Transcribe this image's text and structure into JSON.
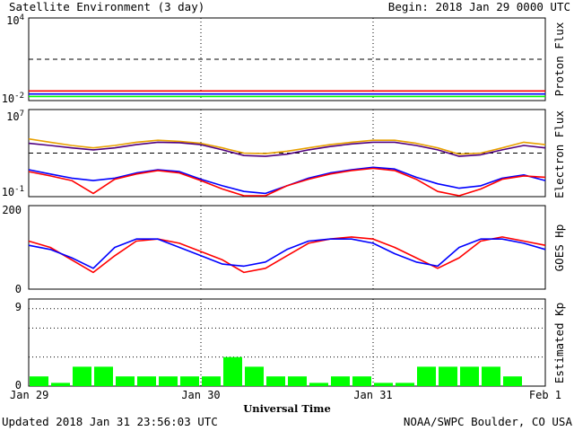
{
  "header": {
    "title": "Satellite Environment (3 day)",
    "begin": "Begin:  2018 Jan 29 0000 UTC"
  },
  "footer": {
    "updated": "Updated 2018 Jan 31 23:56:03 UTC",
    "source": "NOAA/SWPC Boulder, CO USA"
  },
  "x_axis": {
    "label": "Universal Time",
    "ticks": [
      "Jan 29",
      "Jan 30",
      "Jan 31",
      "Feb 1"
    ],
    "range_hours": [
      0,
      72
    ]
  },
  "colors": {
    "red": "#ff0000",
    "blue": "#0000ff",
    "green": "#00ff00",
    "orange": "#e8a000",
    "purple": "#500080",
    "kp_bar": "#00ff00"
  },
  "chart_data": [
    {
      "type": "line",
      "panel": "proton",
      "ylabel": "Proton Flux",
      "yscale": "log",
      "ylim": [
        0.01,
        10000
      ],
      "ytick_labels": {
        "top": {
          "base": "10",
          "exp": "4"
        },
        "bottom": {
          "base": "10",
          "exp": "-2"
        }
      },
      "threshold": 10,
      "x": [
        0,
        6,
        12,
        18,
        24,
        30,
        36,
        42,
        48,
        54,
        60,
        66,
        72
      ],
      "series": [
        {
          "color": "red",
          "values": [
            0.05,
            0.05,
            0.05,
            0.05,
            0.05,
            0.05,
            0.05,
            0.05,
            0.05,
            0.05,
            0.05,
            0.05,
            0.05
          ]
        },
        {
          "color": "blue",
          "values": [
            0.03,
            0.03,
            0.03,
            0.03,
            0.03,
            0.03,
            0.03,
            0.03,
            0.03,
            0.03,
            0.03,
            0.03,
            0.03
          ]
        },
        {
          "color": "green",
          "values": [
            0.02,
            0.02,
            0.02,
            0.02,
            0.02,
            0.02,
            0.02,
            0.02,
            0.02,
            0.02,
            0.02,
            0.02,
            0.02
          ]
        }
      ]
    },
    {
      "type": "line",
      "panel": "electron",
      "ylabel": "Electron Flux",
      "yscale": "log",
      "ylim": [
        0.1,
        10000000
      ],
      "ytick_labels": {
        "top": {
          "base": "10",
          "exp": "7"
        },
        "bottom": {
          "base": "10",
          "exp": "-1"
        }
      },
      "threshold": 1000,
      "x": [
        0,
        3,
        6,
        9,
        12,
        15,
        18,
        21,
        24,
        27,
        30,
        33,
        36,
        39,
        42,
        45,
        48,
        51,
        54,
        57,
        60,
        63,
        66,
        69,
        72
      ],
      "series": [
        {
          "color": "orange",
          "values": [
            20000,
            10000,
            5000,
            3000,
            5000,
            10000,
            15000,
            12000,
            8000,
            3000,
            1000,
            900,
            1500,
            3000,
            6000,
            10000,
            15000,
            15000,
            8000,
            3000,
            800,
            1000,
            3000,
            10000,
            6000
          ]
        },
        {
          "color": "purple",
          "values": [
            8000,
            5000,
            3000,
            2000,
            3000,
            6000,
            10000,
            9000,
            6000,
            2000,
            600,
            500,
            800,
            2000,
            4000,
            7000,
            10000,
            10000,
            5000,
            2000,
            500,
            700,
            2000,
            5000,
            3000
          ]
        },
        {
          "color": "blue",
          "values": [
            30,
            12,
            5,
            3,
            5,
            15,
            30,
            20,
            4,
            1,
            0.3,
            0.2,
            1,
            5,
            15,
            30,
            50,
            35,
            6,
            1.5,
            0.6,
            1,
            5,
            10,
            3
          ]
        },
        {
          "color": "red",
          "values": [
            20,
            8,
            3,
            0.2,
            4,
            12,
            25,
            15,
            3,
            0.5,
            0.12,
            0.12,
            1,
            4,
            12,
            25,
            40,
            25,
            4,
            0.3,
            0.12,
            0.5,
            4,
            8,
            6
          ]
        }
      ]
    },
    {
      "type": "line",
      "panel": "goes_hp",
      "ylabel": "GOES Hp",
      "yscale": "linear",
      "ylim": [
        0,
        200
      ],
      "yticks": [
        "0",
        "100",
        "200"
      ],
      "x": [
        0,
        3,
        6,
        9,
        12,
        15,
        18,
        21,
        24,
        27,
        30,
        33,
        36,
        39,
        42,
        45,
        48,
        51,
        54,
        57,
        60,
        63,
        66,
        69,
        72
      ],
      "series": [
        {
          "color": "red",
          "values": [
            115,
            100,
            70,
            40,
            80,
            115,
            120,
            110,
            90,
            70,
            40,
            50,
            80,
            110,
            120,
            125,
            120,
            100,
            75,
            50,
            75,
            115,
            125,
            115,
            105
          ]
        },
        {
          "color": "blue",
          "values": [
            105,
            95,
            75,
            50,
            100,
            120,
            120,
            100,
            80,
            60,
            55,
            65,
            95,
            115,
            120,
            120,
            110,
            85,
            65,
            55,
            100,
            120,
            120,
            110,
            95
          ]
        }
      ]
    },
    {
      "type": "bar",
      "panel": "kp",
      "ylabel": "Estimated Kp",
      "ylim": [
        0,
        9
      ],
      "yticks": [
        "0",
        "9"
      ],
      "bar_hours": 3,
      "values": [
        1,
        0.33,
        2,
        2,
        1,
        1,
        1,
        1,
        1,
        3,
        2,
        1,
        1,
        0.33,
        1,
        1,
        0.33,
        0.33,
        2,
        2,
        2,
        2,
        1,
        0
      ]
    }
  ]
}
